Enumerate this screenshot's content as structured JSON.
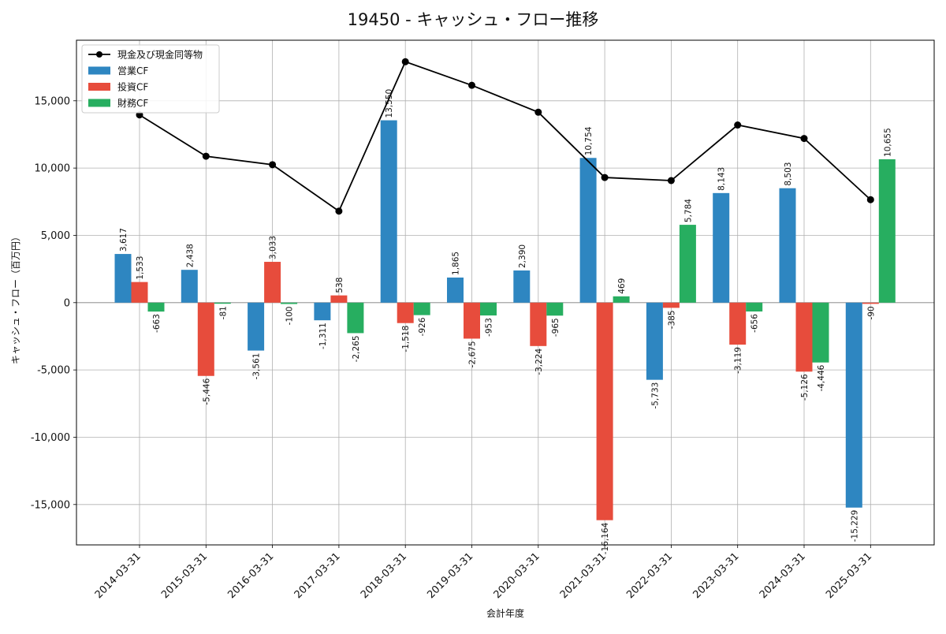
{
  "chart_data": {
    "type": "bar",
    "title": "19450 - キャッシュ・フロー推移",
    "xlabel": "会計年度",
    "ylabel": "キャッシュ・フロー（百万円）",
    "ylim": [
      -18000,
      19500
    ],
    "yticks": [
      -15000,
      -10000,
      -5000,
      0,
      5000,
      10000,
      15000
    ],
    "ytick_labels": [
      "-15,000",
      "-10,000",
      "-5,000",
      "0",
      "5,000",
      "10,000",
      "15,000"
    ],
    "grid": true,
    "legend_position": "top-left",
    "categories": [
      "2014-03-31",
      "2015-03-31",
      "2016-03-31",
      "2017-03-31",
      "2018-03-31",
      "2019-03-31",
      "2020-03-31",
      "2021-03-31",
      "2022-03-31",
      "2023-03-31",
      "2024-03-31",
      "2025-03-31"
    ],
    "series": [
      {
        "name": "営業CF",
        "kind": "bar",
        "color": "#2e86c1",
        "values": [
          3617,
          2438,
          -3561,
          -1311,
          13550,
          1865,
          2390,
          10754,
          -5733,
          8143,
          8503,
          -15229
        ],
        "labels": [
          "3,617",
          "2,438",
          "-3,561",
          "-1,311",
          "13,550",
          "1,865",
          "2,390",
          "10,754",
          "-5,733",
          "8,143",
          "8,503",
          "-15,229"
        ]
      },
      {
        "name": "投資CF",
        "kind": "bar",
        "color": "#e74c3c",
        "values": [
          1533,
          -5446,
          3033,
          538,
          -1518,
          -2675,
          -3224,
          -16164,
          -385,
          -3119,
          -5126,
          -90
        ],
        "labels": [
          "1,533",
          "-5,446",
          "3,033",
          "538",
          "-1,518",
          "-2,675",
          "-3,224",
          "-16,164",
          "-385",
          "-3,119",
          "-5,126",
          "-90"
        ]
      },
      {
        "name": "財務CF",
        "kind": "bar",
        "color": "#27ae60",
        "values": [
          -663,
          -81,
          -100,
          -2265,
          -926,
          -953,
          -965,
          469,
          5784,
          -656,
          -4446,
          10655
        ],
        "labels": [
          "-663",
          "-81",
          "-100",
          "-2,265",
          "-926",
          "-953",
          "-965",
          "469",
          "5,784",
          "-656",
          "-4,446",
          "10,655"
        ]
      },
      {
        "name": "現金及び現金同等物",
        "kind": "line",
        "color": "#000000",
        "values": [
          13950,
          10880,
          10250,
          6800,
          17900,
          16150,
          14150,
          9300,
          9070,
          13200,
          12200,
          7650
        ]
      }
    ]
  }
}
